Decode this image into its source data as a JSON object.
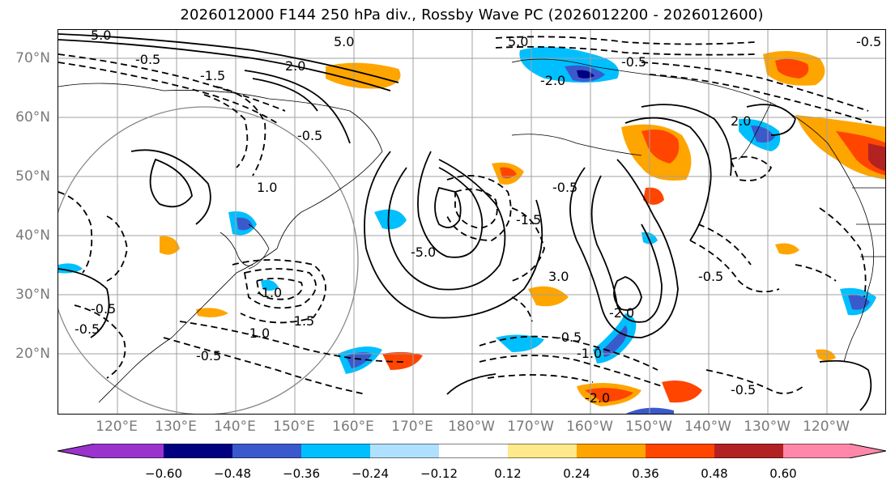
{
  "title": "2026012000 F144 250 hPa div., Rossby Wave PC (2026012200 - 2026012600)",
  "map": {
    "lat_labels": [
      "70°N",
      "60°N",
      "50°N",
      "40°N",
      "30°N",
      "20°N"
    ],
    "lon_labels": [
      "120°E",
      "130°E",
      "140°E",
      "150°E",
      "160°E",
      "170°E",
      "180°W",
      "170°W",
      "160°W",
      "150°W",
      "140°W",
      "130°W",
      "120°W"
    ],
    "contour_labels": [
      "5.0",
      "-0.5",
      "-1.5",
      "2.0",
      "-0.5",
      "1.0",
      "-0.5",
      "-5.0",
      "-1.0",
      "-1.0",
      "-1.5",
      "-0.5",
      "5.0",
      "-2.0",
      "-0.5",
      "-0.5",
      "-1.0",
      "-1.5",
      "-2.0",
      "-2.0",
      "-0.5",
      "-0.5",
      "2.0",
      "-0.5",
      "3.0",
      "-0.5",
      "5.0",
      "-0.5"
    ]
  },
  "colorbar": {
    "ticks": [
      "−0.60",
      "−0.48",
      "−0.36",
      "−0.24",
      "−0.12",
      "0.12",
      "0.24",
      "0.36",
      "0.48",
      "0.60"
    ],
    "colors": [
      "#9933cc",
      "#000080",
      "#3a5acc",
      "#00bfff",
      "#b0e0ff",
      "#ffffff",
      "#ffe98a",
      "#ffa500",
      "#ff4500",
      "#b22222",
      "#ff88aa"
    ]
  }
}
